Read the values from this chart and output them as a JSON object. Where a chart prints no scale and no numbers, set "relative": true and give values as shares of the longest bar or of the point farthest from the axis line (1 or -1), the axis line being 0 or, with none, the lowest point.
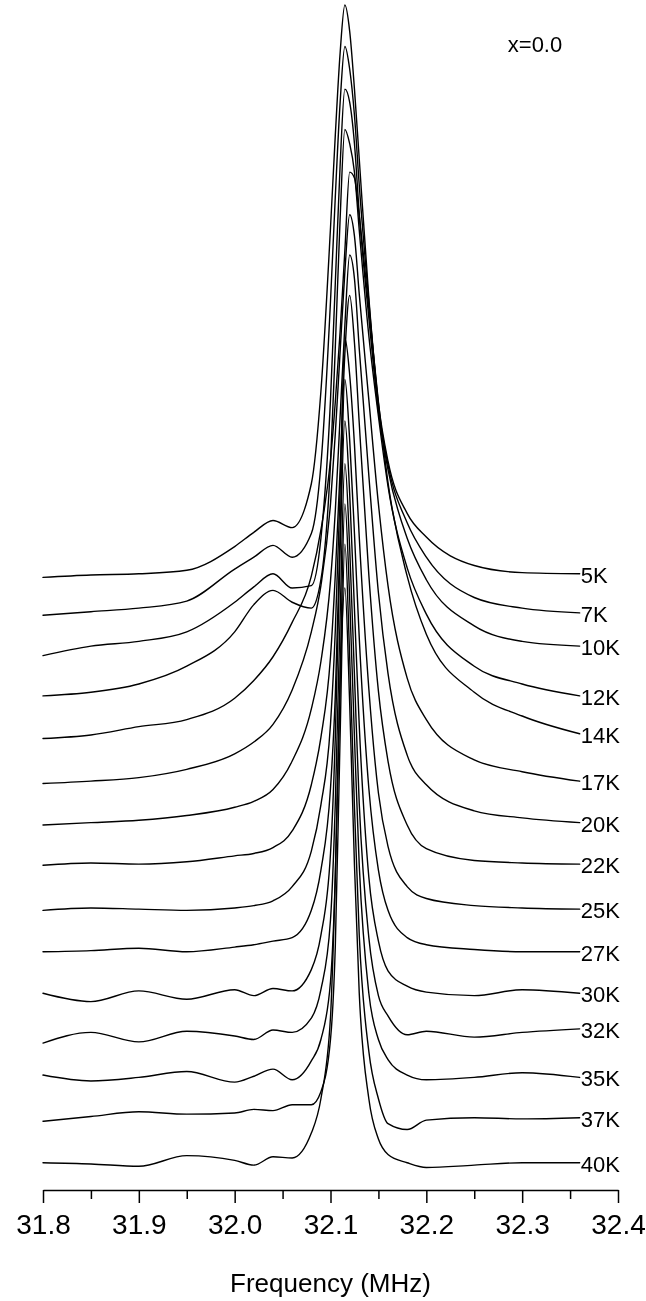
{
  "chart_data": {
    "type": "line",
    "relative": true,
    "xlabel": "Frequency (MHz)",
    "annotations": [
      "x=0.0"
    ],
    "xlim": [
      31.8,
      32.4
    ],
    "xticks": [
      31.8,
      {
        "value": 31.85,
        "label": null
      },
      31.9,
      {
        "value": 31.95,
        "label": null
      },
      {
        "value": 32.0,
        "label": "32.0"
      },
      {
        "value": 32.05,
        "label": null
      },
      32.1,
      {
        "value": 32.15,
        "label": null
      },
      32.2,
      {
        "value": 32.25,
        "label": null
      },
      32.3,
      {
        "value": 32.35,
        "label": null
      },
      32.4
    ],
    "x": [
      31.8,
      31.85,
      31.9,
      31.95,
      32.0,
      32.02,
      32.04,
      32.06,
      32.08,
      32.09,
      32.1,
      32.105,
      32.11,
      32.115,
      32.12,
      32.125,
      32.13,
      32.14,
      32.15,
      32.16,
      32.18,
      32.2,
      32.25,
      32.3,
      32.36
    ],
    "series": [
      {
        "name": "5K",
        "color": "#000000",
        "values": [
          0.517,
          0.519,
          0.52,
          0.523,
          0.543,
          0.555,
          0.565,
          0.559,
          0.596,
          0.674,
          0.812,
          0.89,
          0.959,
          1.0,
          0.978,
          0.929,
          0.87,
          0.753,
          0.664,
          0.615,
          0.571,
          0.551,
          0.527,
          0.521,
          0.52
        ]
      },
      {
        "name": "7K",
        "color": "#000000",
        "values": [
          0.485,
          0.488,
          0.491,
          0.497,
          0.524,
          0.534,
          0.544,
          0.534,
          0.554,
          0.612,
          0.75,
          0.838,
          0.917,
          0.965,
          0.946,
          0.907,
          0.848,
          0.75,
          0.661,
          0.612,
          0.563,
          0.534,
          0.5,
          0.491,
          0.487
        ]
      },
      {
        "name": "10K",
        "color": "#000000",
        "values": [
          0.451,
          0.459,
          0.463,
          0.471,
          0.496,
          0.509,
          0.52,
          0.508,
          0.51,
          0.55,
          0.667,
          0.765,
          0.864,
          0.929,
          0.918,
          0.883,
          0.824,
          0.736,
          0.657,
          0.608,
          0.55,
          0.515,
          0.476,
          0.463,
          0.459
        ]
      },
      {
        "name": "12K",
        "color": "#000000",
        "values": [
          0.417,
          0.42,
          0.427,
          0.442,
          0.471,
          0.494,
          0.506,
          0.496,
          0.491,
          0.515,
          0.613,
          0.711,
          0.819,
          0.895,
          0.883,
          0.859,
          0.81,
          0.721,
          0.653,
          0.594,
          0.525,
          0.486,
          0.442,
          0.427,
          0.417
        ]
      },
      {
        "name": "14K",
        "color": "#000000",
        "values": [
          0.381,
          0.384,
          0.391,
          0.397,
          0.415,
          0.43,
          0.45,
          0.479,
          0.518,
          0.557,
          0.616,
          0.665,
          0.724,
          0.793,
          0.859,
          0.854,
          0.822,
          0.744,
          0.665,
          0.597,
          0.518,
          0.469,
          0.42,
          0.4,
          0.385
        ]
      },
      {
        "name": "17K",
        "color": "#000000",
        "values": [
          0.343,
          0.345,
          0.348,
          0.355,
          0.368,
          0.378,
          0.393,
          0.422,
          0.471,
          0.51,
          0.579,
          0.638,
          0.707,
          0.775,
          0.823,
          0.805,
          0.756,
          0.667,
          0.579,
          0.51,
          0.432,
          0.397,
          0.363,
          0.353,
          0.345
        ]
      },
      {
        "name": "20K",
        "color": "#000000",
        "values": [
          0.308,
          0.31,
          0.312,
          0.316,
          0.323,
          0.328,
          0.338,
          0.362,
          0.406,
          0.446,
          0.514,
          0.573,
          0.652,
          0.73,
          0.789,
          0.769,
          0.71,
          0.603,
          0.504,
          0.436,
          0.367,
          0.342,
          0.32,
          0.314,
          0.31
        ]
      },
      {
        "name": "22K",
        "color": "#000000",
        "values": [
          0.274,
          0.276,
          0.275,
          0.277,
          0.282,
          0.284,
          0.289,
          0.303,
          0.342,
          0.382,
          0.45,
          0.519,
          0.607,
          0.706,
          0.755,
          0.715,
          0.647,
          0.519,
          0.421,
          0.362,
          0.308,
          0.288,
          0.278,
          0.276,
          0.275
        ]
      },
      {
        "name": "25K",
        "color": "#000000",
        "values": [
          0.236,
          0.238,
          0.237,
          0.236,
          0.238,
          0.24,
          0.244,
          0.256,
          0.286,
          0.325,
          0.393,
          0.472,
          0.59,
          0.719,
          0.688,
          0.629,
          0.551,
          0.423,
          0.335,
          0.29,
          0.256,
          0.246,
          0.24,
          0.238,
          0.237
        ]
      },
      {
        "name": "27K",
        "color": "#000000",
        "values": [
          0.201,
          0.202,
          0.204,
          0.201,
          0.205,
          0.207,
          0.21,
          0.213,
          0.236,
          0.27,
          0.339,
          0.417,
          0.554,
          0.684,
          0.633,
          0.554,
          0.466,
          0.339,
          0.27,
          0.236,
          0.213,
          0.207,
          0.203,
          0.201,
          0.201
        ]
      },
      {
        "name": "30K",
        "color": "#000000",
        "values": [
          0.166,
          0.159,
          0.168,
          0.161,
          0.169,
          0.164,
          0.17,
          0.168,
          0.186,
          0.215,
          0.284,
          0.382,
          0.539,
          0.649,
          0.588,
          0.49,
          0.392,
          0.264,
          0.21,
          0.185,
          0.172,
          0.167,
          0.164,
          0.169,
          0.166
        ]
      },
      {
        "name": "32K",
        "color": "#000000",
        "values": [
          0.124,
          0.133,
          0.125,
          0.134,
          0.13,
          0.127,
          0.135,
          0.133,
          0.145,
          0.169,
          0.228,
          0.326,
          0.483,
          0.613,
          0.542,
          0.434,
          0.326,
          0.213,
          0.164,
          0.147,
          0.131,
          0.134,
          0.129,
          0.133,
          0.136
        ]
      },
      {
        "name": "35K",
        "color": "#000000",
        "values": [
          0.097,
          0.092,
          0.095,
          0.1,
          0.091,
          0.096,
          0.102,
          0.093,
          0.109,
          0.127,
          0.176,
          0.264,
          0.431,
          0.579,
          0.499,
          0.382,
          0.274,
          0.166,
          0.127,
          0.11,
          0.097,
          0.093,
          0.095,
          0.099,
          0.095
        ]
      },
      {
        "name": "37K",
        "color": "#000000",
        "values": [
          0.058,
          0.062,
          0.066,
          0.064,
          0.065,
          0.068,
          0.067,
          0.072,
          0.072,
          0.083,
          0.127,
          0.205,
          0.382,
          0.545,
          0.45,
          0.323,
          0.215,
          0.117,
          0.077,
          0.056,
          0.051,
          0.059,
          0.061,
          0.06,
          0.061
        ]
      },
      {
        "name": "40K",
        "color": "#000000",
        "values": [
          0.023,
          0.022,
          0.02,
          0.029,
          0.025,
          0.021,
          0.028,
          0.027,
          0.048,
          0.077,
          0.146,
          0.264,
          0.431,
          0.508,
          0.411,
          0.274,
          0.166,
          0.077,
          0.043,
          0.03,
          0.023,
          0.019,
          0.021,
          0.023,
          0.023
        ]
      }
    ]
  }
}
